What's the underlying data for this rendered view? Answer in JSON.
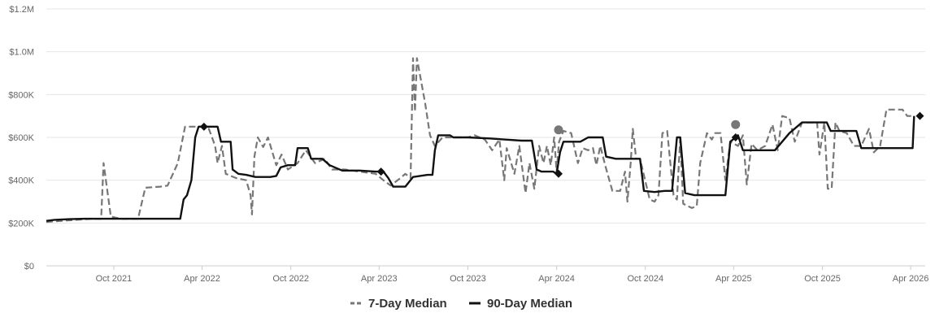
{
  "chart_data": {
    "type": "line",
    "title": "",
    "xlabel": "",
    "ylabel": "",
    "ylim": [
      0,
      1200000
    ],
    "xlim": [
      "2021-05-15",
      "2026-05-01"
    ],
    "grid": true,
    "legend_placement": "bottom-center",
    "y_ticks": [
      {
        "value": 0,
        "label": "$0"
      },
      {
        "value": 200000,
        "label": "$200K"
      },
      {
        "value": 400000,
        "label": "$400K"
      },
      {
        "value": 600000,
        "label": "$600K"
      },
      {
        "value": 800000,
        "label": "$800K"
      },
      {
        "value": 1000000,
        "label": "$1.0M"
      },
      {
        "value": 1200000,
        "label": "$1.2M"
      }
    ],
    "x_ticks": [
      {
        "date": "2021-10-01",
        "label": "Oct 2021"
      },
      {
        "date": "2022-04-01",
        "label": "Apr 2022"
      },
      {
        "date": "2022-10-01",
        "label": "Oct 2022"
      },
      {
        "date": "2023-04-01",
        "label": "Apr 2023"
      },
      {
        "date": "2023-10-01",
        "label": "Oct 2023"
      },
      {
        "date": "2024-04-01",
        "label": "Apr 2024"
      },
      {
        "date": "2024-10-01",
        "label": "Oct 2024"
      },
      {
        "date": "2025-04-01",
        "label": "Apr 2025"
      },
      {
        "date": "2025-10-01",
        "label": "Oct 2025"
      },
      {
        "date": "2026-04-01",
        "label": "Apr 2026"
      }
    ],
    "series": [
      {
        "name": "7-Day Median",
        "color": "#777777",
        "style": "dashed",
        "points": [
          [
            "2021-05-15",
            205000
          ],
          [
            "2021-06-15",
            210000
          ],
          [
            "2021-07-15",
            215000
          ],
          [
            "2021-08-15",
            220000
          ],
          [
            "2021-09-05",
            220000
          ],
          [
            "2021-09-10",
            480000
          ],
          [
            "2021-09-25",
            230000
          ],
          [
            "2021-10-15",
            220000
          ],
          [
            "2021-11-20",
            220000
          ],
          [
            "2021-12-05",
            365000
          ],
          [
            "2022-01-05",
            370000
          ],
          [
            "2022-01-20",
            375000
          ],
          [
            "2022-02-10",
            480000
          ],
          [
            "2022-02-25",
            650000
          ],
          [
            "2022-03-15",
            650000
          ],
          [
            "2022-04-01",
            650000
          ],
          [
            "2022-04-15",
            640000
          ],
          [
            "2022-04-28",
            560000
          ],
          [
            "2022-05-03",
            480000
          ],
          [
            "2022-05-12",
            560000
          ],
          [
            "2022-05-20",
            430000
          ],
          [
            "2022-06-10",
            410000
          ],
          [
            "2022-07-01",
            400000
          ],
          [
            "2022-07-10",
            330000
          ],
          [
            "2022-07-13",
            240000
          ],
          [
            "2022-07-18",
            510000
          ],
          [
            "2022-07-25",
            600000
          ],
          [
            "2022-08-05",
            555000
          ],
          [
            "2022-08-15",
            600000
          ],
          [
            "2022-09-01",
            470000
          ],
          [
            "2022-09-12",
            520000
          ],
          [
            "2022-09-25",
            450000
          ],
          [
            "2022-10-15",
            480000
          ],
          [
            "2022-11-01",
            540000
          ],
          [
            "2022-11-20",
            480000
          ],
          [
            "2022-12-10",
            500000
          ],
          [
            "2022-12-25",
            450000
          ],
          [
            "2023-01-20",
            450000
          ],
          [
            "2023-02-20",
            440000
          ],
          [
            "2023-03-25",
            430000
          ],
          [
            "2023-04-10",
            400000
          ],
          [
            "2023-04-25",
            375000
          ],
          [
            "2023-05-15",
            410000
          ],
          [
            "2023-05-25",
            430000
          ],
          [
            "2023-06-05",
            410000
          ],
          [
            "2023-06-10",
            970000
          ],
          [
            "2023-06-14",
            720000
          ],
          [
            "2023-06-18",
            970000
          ],
          [
            "2023-07-05",
            760000
          ],
          [
            "2023-07-15",
            610000
          ],
          [
            "2023-07-25",
            560000
          ],
          [
            "2023-08-10",
            600000
          ],
          [
            "2023-10-01",
            600000
          ],
          [
            "2023-10-15",
            610000
          ],
          [
            "2023-11-05",
            590000
          ],
          [
            "2023-11-20",
            540000
          ],
          [
            "2023-12-05",
            590000
          ],
          [
            "2023-12-15",
            400000
          ],
          [
            "2023-12-20",
            550000
          ],
          [
            "2024-01-05",
            430000
          ],
          [
            "2024-01-15",
            560000
          ],
          [
            "2024-01-28",
            340000
          ],
          [
            "2024-02-05",
            480000
          ],
          [
            "2024-02-15",
            360000
          ],
          [
            "2024-02-25",
            560000
          ],
          [
            "2024-03-05",
            480000
          ],
          [
            "2024-03-12",
            560000
          ],
          [
            "2024-03-20",
            470000
          ],
          [
            "2024-03-27",
            600000
          ],
          [
            "2024-04-01",
            440000
          ],
          [
            "2024-04-06",
            580000
          ],
          [
            "2024-04-15",
            630000
          ],
          [
            "2024-05-01",
            620000
          ],
          [
            "2024-05-15",
            480000
          ],
          [
            "2024-05-25",
            550000
          ],
          [
            "2024-06-05",
            540000
          ],
          [
            "2024-06-15",
            550000
          ],
          [
            "2024-06-22",
            470000
          ],
          [
            "2024-06-30",
            560000
          ],
          [
            "2024-07-10",
            470000
          ],
          [
            "2024-07-25",
            350000
          ],
          [
            "2024-08-10",
            350000
          ],
          [
            "2024-08-20",
            440000
          ],
          [
            "2024-08-25",
            300000
          ],
          [
            "2024-09-01",
            490000
          ],
          [
            "2024-09-05",
            640000
          ],
          [
            "2024-09-12",
            500000
          ],
          [
            "2024-09-20",
            500000
          ],
          [
            "2024-10-10",
            310000
          ],
          [
            "2024-10-20",
            300000
          ],
          [
            "2024-10-28",
            330000
          ],
          [
            "2024-11-05",
            620000
          ],
          [
            "2024-11-15",
            630000
          ],
          [
            "2024-11-28",
            330000
          ],
          [
            "2024-12-05",
            310000
          ],
          [
            "2024-12-12",
            600000
          ],
          [
            "2024-12-18",
            290000
          ],
          [
            "2025-01-05",
            270000
          ],
          [
            "2025-01-15",
            280000
          ],
          [
            "2025-01-22",
            480000
          ],
          [
            "2025-02-05",
            620000
          ],
          [
            "2025-02-15",
            590000
          ],
          [
            "2025-02-22",
            620000
          ],
          [
            "2025-03-05",
            620000
          ],
          [
            "2025-03-15",
            400000
          ],
          [
            "2025-03-25",
            580000
          ],
          [
            "2025-04-10",
            560000
          ],
          [
            "2025-04-20",
            610000
          ],
          [
            "2025-04-28",
            380000
          ],
          [
            "2025-05-08",
            570000
          ],
          [
            "2025-05-20",
            540000
          ],
          [
            "2025-06-05",
            560000
          ],
          [
            "2025-06-20",
            660000
          ],
          [
            "2025-07-01",
            540000
          ],
          [
            "2025-07-10",
            700000
          ],
          [
            "2025-07-25",
            690000
          ],
          [
            "2025-08-05",
            580000
          ],
          [
            "2025-08-20",
            670000
          ],
          [
            "2025-09-05",
            670000
          ],
          [
            "2025-09-20",
            670000
          ],
          [
            "2025-09-25",
            520000
          ],
          [
            "2025-10-05",
            670000
          ],
          [
            "2025-10-12",
            360000
          ],
          [
            "2025-10-20",
            360000
          ],
          [
            "2025-10-28",
            670000
          ],
          [
            "2025-11-05",
            630000
          ],
          [
            "2025-11-20",
            620000
          ],
          [
            "2025-12-05",
            560000
          ],
          [
            "2025-12-20",
            560000
          ],
          [
            "2026-01-05",
            640000
          ],
          [
            "2026-01-15",
            530000
          ],
          [
            "2026-01-28",
            560000
          ],
          [
            "2026-02-10",
            730000
          ],
          [
            "2026-03-15",
            730000
          ],
          [
            "2026-03-25",
            700000
          ],
          [
            "2026-04-08",
            700000
          ]
        ]
      },
      {
        "name": "90-Day Median",
        "color": "#111111",
        "style": "solid",
        "points": [
          [
            "2021-05-15",
            210000
          ],
          [
            "2021-06-01",
            215000
          ],
          [
            "2021-07-01",
            218000
          ],
          [
            "2021-08-01",
            220000
          ],
          [
            "2021-10-01",
            220000
          ],
          [
            "2022-01-15",
            220000
          ],
          [
            "2022-02-15",
            220000
          ],
          [
            "2022-02-22",
            310000
          ],
          [
            "2022-03-01",
            330000
          ],
          [
            "2022-03-10",
            400000
          ],
          [
            "2022-03-18",
            600000
          ],
          [
            "2022-03-25",
            650000
          ],
          [
            "2022-04-20",
            650000
          ],
          [
            "2022-05-03",
            650000
          ],
          [
            "2022-05-10",
            580000
          ],
          [
            "2022-05-30",
            580000
          ],
          [
            "2022-06-03",
            450000
          ],
          [
            "2022-06-15",
            430000
          ],
          [
            "2022-07-01",
            425000
          ],
          [
            "2022-07-20",
            415000
          ],
          [
            "2022-08-20",
            415000
          ],
          [
            "2022-09-01",
            420000
          ],
          [
            "2022-09-10",
            460000
          ],
          [
            "2022-09-25",
            470000
          ],
          [
            "2022-10-10",
            470000
          ],
          [
            "2022-10-15",
            550000
          ],
          [
            "2022-11-05",
            550000
          ],
          [
            "2022-11-12",
            500000
          ],
          [
            "2022-12-05",
            500000
          ],
          [
            "2022-12-20",
            470000
          ],
          [
            "2023-01-15",
            445000
          ],
          [
            "2023-02-20",
            445000
          ],
          [
            "2023-03-25",
            440000
          ],
          [
            "2023-04-10",
            440000
          ],
          [
            "2023-04-20",
            410000
          ],
          [
            "2023-04-30",
            370000
          ],
          [
            "2023-05-25",
            370000
          ],
          [
            "2023-06-10",
            415000
          ],
          [
            "2023-07-10",
            425000
          ],
          [
            "2023-07-20",
            425000
          ],
          [
            "2023-07-25",
            540000
          ],
          [
            "2023-08-01",
            610000
          ],
          [
            "2023-08-25",
            610000
          ],
          [
            "2023-09-01",
            600000
          ],
          [
            "2023-10-01",
            600000
          ],
          [
            "2023-11-15",
            595000
          ],
          [
            "2023-12-15",
            590000
          ],
          [
            "2024-01-20",
            585000
          ],
          [
            "2024-02-10",
            585000
          ],
          [
            "2024-02-20",
            450000
          ],
          [
            "2024-03-01",
            440000
          ],
          [
            "2024-03-25",
            440000
          ],
          [
            "2024-04-01",
            430000
          ],
          [
            "2024-04-08",
            530000
          ],
          [
            "2024-04-15",
            580000
          ],
          [
            "2024-05-20",
            580000
          ],
          [
            "2024-06-05",
            600000
          ],
          [
            "2024-06-25",
            600000
          ],
          [
            "2024-07-05",
            600000
          ],
          [
            "2024-07-12",
            510000
          ],
          [
            "2024-08-01",
            500000
          ],
          [
            "2024-09-20",
            500000
          ],
          [
            "2024-09-28",
            350000
          ],
          [
            "2024-10-20",
            345000
          ],
          [
            "2024-11-10",
            350000
          ],
          [
            "2024-11-25",
            350000
          ],
          [
            "2024-12-05",
            600000
          ],
          [
            "2024-12-12",
            600000
          ],
          [
            "2024-12-22",
            340000
          ],
          [
            "2025-01-10",
            330000
          ],
          [
            "2025-03-15",
            330000
          ],
          [
            "2025-03-25",
            580000
          ],
          [
            "2025-04-10",
            610000
          ],
          [
            "2025-04-20",
            540000
          ],
          [
            "2025-06-25",
            540000
          ],
          [
            "2025-07-25",
            620000
          ],
          [
            "2025-08-20",
            670000
          ],
          [
            "2025-09-05",
            670000
          ],
          [
            "2025-10-10",
            670000
          ],
          [
            "2025-10-18",
            630000
          ],
          [
            "2025-12-10",
            630000
          ],
          [
            "2025-12-20",
            550000
          ],
          [
            "2026-01-10",
            550000
          ],
          [
            "2026-03-10",
            550000
          ],
          [
            "2026-03-20",
            550000
          ],
          [
            "2026-04-05",
            550000
          ],
          [
            "2026-04-08",
            700000
          ]
        ]
      }
    ],
    "markers": [
      {
        "date": "2022-04-05",
        "value": 650000,
        "shape": "diamond",
        "color": "#111111"
      },
      {
        "date": "2023-04-05",
        "value": 440000,
        "shape": "diamond",
        "color": "#111111"
      },
      {
        "date": "2024-04-05",
        "value": 430000,
        "shape": "diamond",
        "color": "#111111"
      },
      {
        "date": "2024-04-05",
        "value": 635000,
        "shape": "circle",
        "color": "#777777"
      },
      {
        "date": "2025-04-05",
        "value": 600000,
        "shape": "diamond",
        "color": "#111111"
      },
      {
        "date": "2025-04-05",
        "value": 660000,
        "shape": "circle",
        "color": "#777777"
      },
      {
        "date": "2026-04-20",
        "value": 700000,
        "shape": "diamond",
        "color": "#111111"
      }
    ],
    "legend": [
      {
        "label": "7-Day Median",
        "style": "dashed",
        "color": "#777777"
      },
      {
        "label": "90-Day Median",
        "style": "solid",
        "color": "#111111"
      }
    ]
  }
}
